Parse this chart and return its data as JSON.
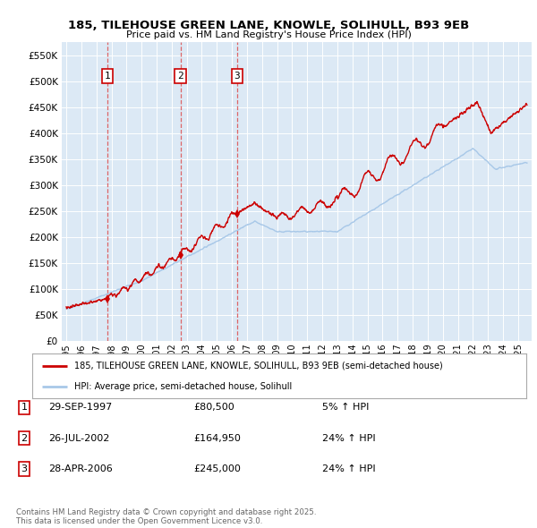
{
  "title_line1": "185, TILEHOUSE GREEN LANE, KNOWLE, SOLIHULL, B93 9EB",
  "title_line2": "Price paid vs. HM Land Registry's House Price Index (HPI)",
  "background_color": "#dce9f5",
  "plot_bg_color": "#dce9f5",
  "sale_color": "#cc0000",
  "hpi_color": "#a8c8e8",
  "sales": [
    {
      "date": "1997-09-29",
      "price": 80500,
      "label": "1"
    },
    {
      "date": "2002-07-26",
      "price": 164950,
      "label": "2"
    },
    {
      "date": "2006-04-28",
      "price": 245000,
      "label": "3"
    }
  ],
  "legend_sale_label": "185, TILEHOUSE GREEN LANE, KNOWLE, SOLIHULL, B93 9EB (semi-detached house)",
  "legend_hpi_label": "HPI: Average price, semi-detached house, Solihull",
  "table_rows": [
    {
      "num": "1",
      "date": "29-SEP-1997",
      "price": "£80,500",
      "change": "5% ↑ HPI"
    },
    {
      "num": "2",
      "date": "26-JUL-2002",
      "price": "£164,950",
      "change": "24% ↑ HPI"
    },
    {
      "num": "3",
      "date": "28-APR-2006",
      "price": "£245,000",
      "change": "24% ↑ HPI"
    }
  ],
  "footnote": "Contains HM Land Registry data © Crown copyright and database right 2025.\nThis data is licensed under the Open Government Licence v3.0.",
  "ylim": [
    0,
    575000
  ],
  "yticks": [
    0,
    50000,
    100000,
    150000,
    200000,
    250000,
    300000,
    350000,
    400000,
    450000,
    500000,
    550000
  ],
  "xlim_start": 1994.7,
  "xlim_end": 2025.9
}
